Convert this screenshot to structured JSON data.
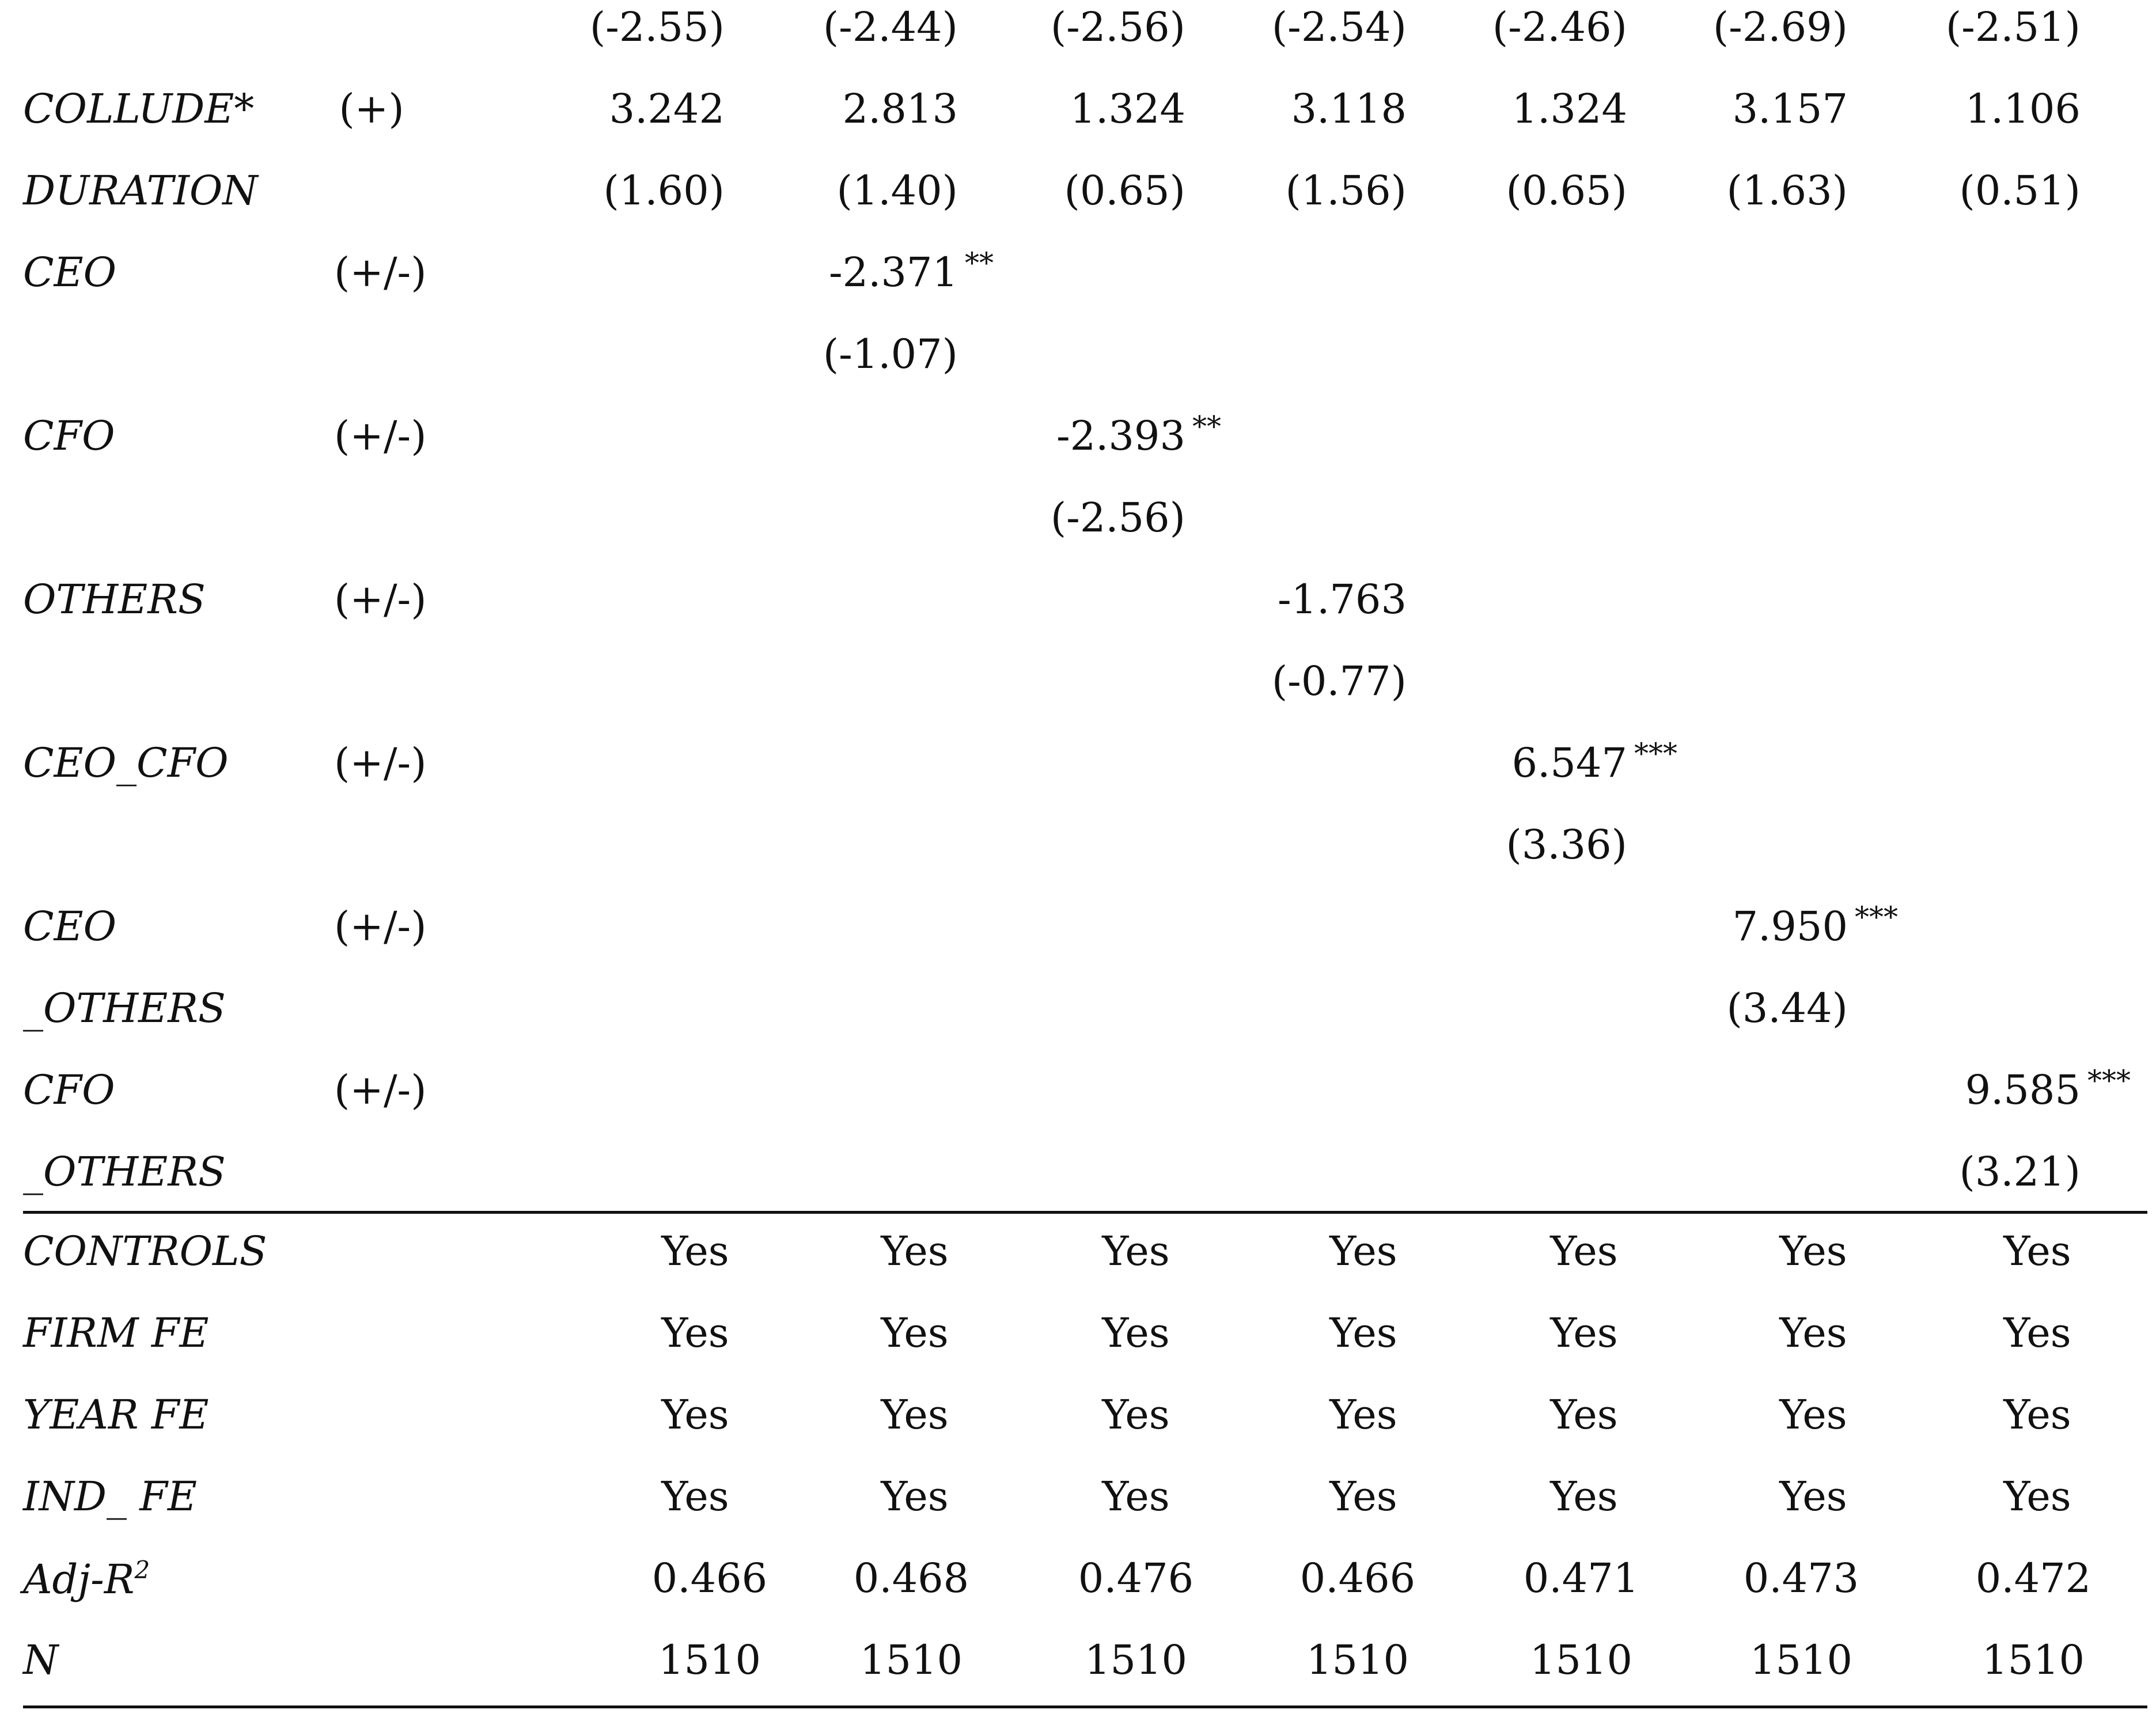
{
  "top_t_stats": [
    "(-2.55)",
    "(-2.44)",
    "(-2.56)",
    "(-2.54)",
    "(-2.46)",
    "(-2.69)",
    "(-2.51)"
  ],
  "rows": [
    {
      "label": "COLLUDE*",
      "sign": "(+)",
      "cells": [
        "3.242",
        "2.813",
        "1.324",
        "3.118",
        "1.324",
        "3.157",
        "1.106"
      ]
    },
    {
      "label": "DURATION",
      "sign": "",
      "cells": [
        "(1.60)",
        "(1.40)",
        "(0.65)",
        "(1.56)",
        "(0.65)",
        "(1.63)",
        "(0.51)"
      ]
    },
    {
      "label": "CEO",
      "sign": "(+/-)",
      "cells": [
        "",
        "-2.371",
        "",
        "",
        "",
        "",
        ""
      ],
      "stars": [
        "",
        "**",
        "",
        "",
        "",
        "",
        ""
      ]
    },
    {
      "label": "",
      "sign": "",
      "cells": [
        "",
        "(-1.07)",
        "",
        "",
        "",
        "",
        ""
      ]
    },
    {
      "label": "CFO",
      "sign": "(+/-)",
      "cells": [
        "",
        "",
        "-2.393",
        "",
        "",
        "",
        ""
      ],
      "stars": [
        "",
        "",
        "**",
        "",
        "",
        "",
        ""
      ]
    },
    {
      "label": "",
      "sign": "",
      "cells": [
        "",
        "",
        "(-2.56)",
        "",
        "",
        "",
        ""
      ]
    },
    {
      "label": "OTHERS",
      "sign": "(+/-)",
      "cells": [
        "",
        "",
        "",
        "-1.763",
        "",
        "",
        ""
      ]
    },
    {
      "label": "",
      "sign": "",
      "cells": [
        "",
        "",
        "",
        "(-0.77)",
        "",
        "",
        ""
      ]
    },
    {
      "label": "CEO_CFO",
      "sign": "(+/-)",
      "cells": [
        "",
        "",
        "",
        "",
        "6.547",
        "",
        ""
      ],
      "stars": [
        "",
        "",
        "",
        "",
        "***",
        "",
        ""
      ]
    },
    {
      "label": "",
      "sign": "",
      "cells": [
        "",
        "",
        "",
        "",
        "(3.36)",
        "",
        ""
      ]
    },
    {
      "label": "CEO",
      "sign": "(+/-)",
      "cells": [
        "",
        "",
        "",
        "",
        "",
        "7.950",
        ""
      ],
      "stars": [
        "",
        "",
        "",
        "",
        "",
        "***",
        ""
      ]
    },
    {
      "label": "_OTHERS",
      "sign": "",
      "cells": [
        "",
        "",
        "",
        "",
        "",
        "(3.44)",
        ""
      ]
    },
    {
      "label": "CFO",
      "sign": "(+/-)",
      "cells": [
        "",
        "",
        "",
        "",
        "",
        "",
        "9.585"
      ],
      "stars": [
        "",
        "",
        "",
        "",
        "",
        "",
        "***"
      ]
    },
    {
      "label": "_OTHERS",
      "sign": "",
      "cells": [
        "",
        "",
        "",
        "",
        "",
        "",
        "(3.21)"
      ]
    }
  ],
  "footer_rows": [
    {
      "label": "CONTROLS",
      "cells": [
        "Yes",
        "Yes",
        "Yes",
        "Yes",
        "Yes",
        "Yes",
        "Yes"
      ]
    },
    {
      "label": "FIRM FE",
      "cells": [
        "Yes",
        "Yes",
        "Yes",
        "Yes",
        "Yes",
        "Yes",
        "Yes"
      ]
    },
    {
      "label": "YEAR FE",
      "cells": [
        "Yes",
        "Yes",
        "Yes",
        "Yes",
        "Yes",
        "Yes",
        "Yes"
      ]
    },
    {
      "label": "IND_ FE",
      "cells": [
        "Yes",
        "Yes",
        "Yes",
        "Yes",
        "Yes",
        "Yes",
        "Yes"
      ]
    },
    {
      "label": "Adj-R",
      "label_sup": "2",
      "cells": [
        "0.466",
        "0.468",
        "0.476",
        "0.466",
        "0.471",
        "0.473",
        "0.472"
      ]
    },
    {
      "label": "N",
      "cells": [
        "1510",
        "1510",
        "1510",
        "1510",
        "1510",
        "1510",
        "1510"
      ]
    }
  ]
}
